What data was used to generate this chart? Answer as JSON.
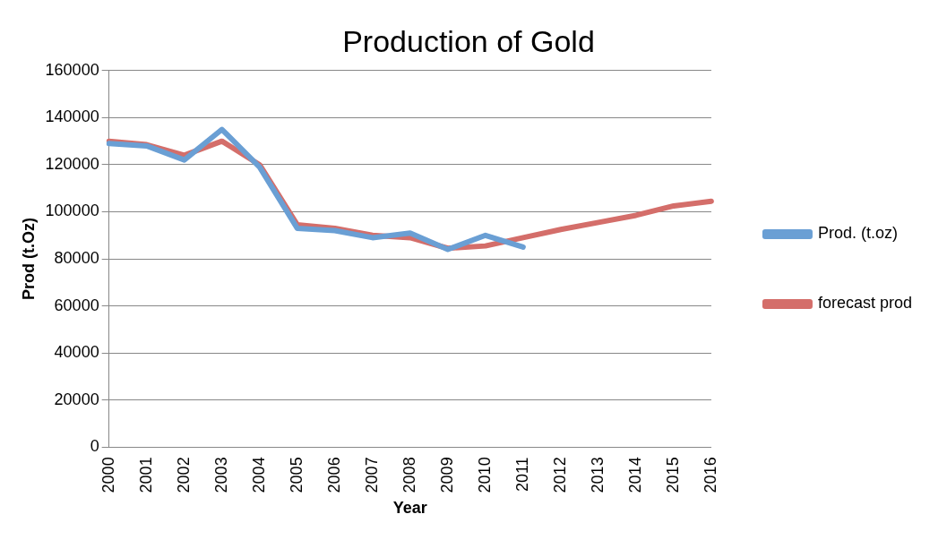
{
  "chart_data": {
    "type": "line",
    "title": "Production of Gold",
    "xlabel": "Year",
    "ylabel": "Prod (t.Oz)",
    "categories": [
      "2000",
      "2001",
      "2002",
      "2003",
      "2004",
      "2005",
      "2006",
      "2007",
      "2008",
      "2009",
      "2010",
      "2011",
      "2012",
      "2013",
      "2014",
      "2015",
      "2016"
    ],
    "series": [
      {
        "name": "Prod. (t.oz)",
        "color": "#6a9fd4",
        "values": [
          129000,
          128000,
          122000,
          135000,
          119000,
          93000,
          92000,
          89000,
          91000,
          84000,
          90000,
          85000,
          null,
          null,
          null,
          null,
          null
        ]
      },
      {
        "name": "forecast prod",
        "color": "#d46e6a",
        "values": [
          130000,
          128500,
          124000,
          130000,
          120000,
          94500,
          93000,
          90000,
          89000,
          84500,
          85500,
          89000,
          92500,
          95500,
          98500,
          102500,
          104500
        ]
      }
    ],
    "ylim": [
      0,
      160000
    ],
    "yticks": [
      0,
      20000,
      40000,
      60000,
      80000,
      100000,
      120000,
      140000,
      160000
    ],
    "grid": "y",
    "legend": "right",
    "marker": "none",
    "line_style": "solid"
  }
}
